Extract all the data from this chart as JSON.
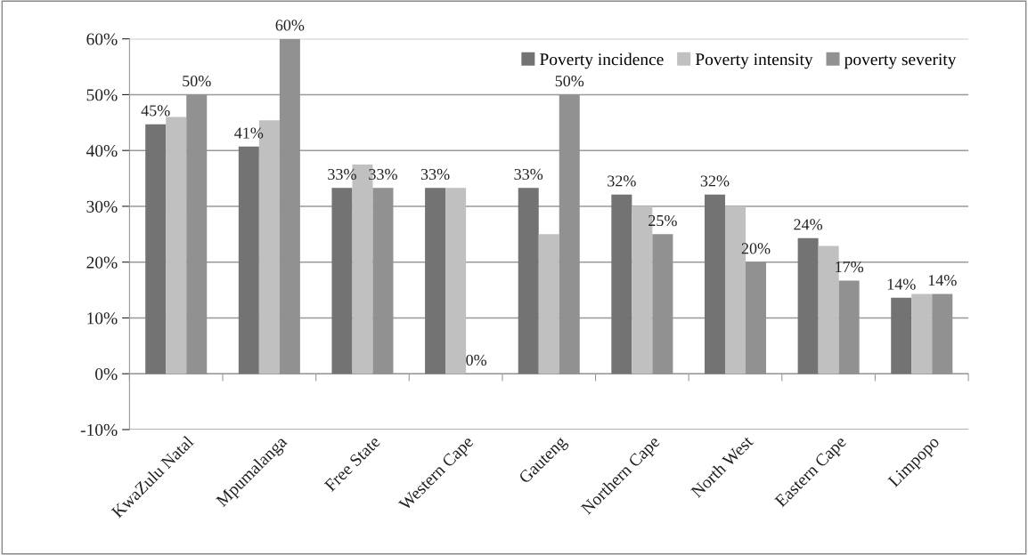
{
  "chart_data": {
    "type": "bar",
    "categories": [
      "KwaZulu Natal",
      "Mpumalanga",
      "Free State",
      "Western Cape",
      "Gauteng",
      "Northern Cape",
      "North West",
      "Eastern Cape",
      "Limpopo"
    ],
    "series": [
      {
        "name": "Poverty incidence",
        "color": "#737373",
        "values": [
          44.7,
          40.7,
          33.3,
          33.3,
          33.3,
          32.1,
          32.1,
          24.3,
          13.6
        ],
        "value_labels": [
          "45%",
          "41%",
          "33%",
          "33%",
          "33%",
          "32%",
          "32%",
          "24%",
          "14%"
        ]
      },
      {
        "name": "Poverty intensity",
        "color": "#c0c0c0",
        "values": [
          46.0,
          45.4,
          37.5,
          33.3,
          25.0,
          30.0,
          30.0,
          22.9,
          14.3
        ]
      },
      {
        "name": "poverty severity",
        "color": "#919191",
        "values": [
          50.0,
          60.0,
          33.3,
          0.0,
          50.0,
          25.0,
          20.0,
          16.7,
          14.3
        ],
        "value_labels": [
          "50%",
          "60%",
          "33%",
          "0%",
          "50%",
          "25%",
          "20%",
          "17%",
          "14%"
        ]
      }
    ],
    "ylim": [
      -10,
      60
    ],
    "yticks": [
      {
        "value": -10,
        "label": "-10%"
      },
      {
        "value": 0,
        "label": "0%"
      },
      {
        "value": 10,
        "label": "10%"
      },
      {
        "value": 20,
        "label": "20%"
      },
      {
        "value": 30,
        "label": "30%"
      },
      {
        "value": 40,
        "label": "40%"
      },
      {
        "value": 50,
        "label": "50%"
      },
      {
        "value": 60,
        "label": "60%"
      }
    ],
    "grid": "y",
    "legend": "top right"
  }
}
